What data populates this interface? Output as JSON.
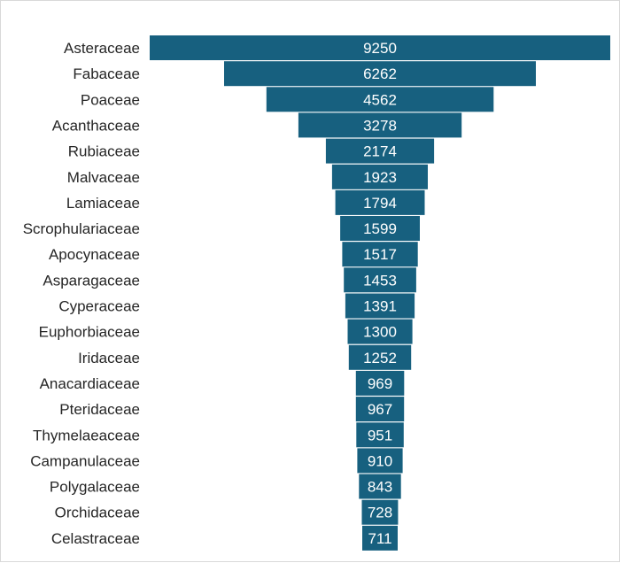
{
  "chart_data": {
    "type": "bar",
    "orientation": "horizontal-centered",
    "title": "",
    "xlabel": "",
    "ylabel": "",
    "bar_color": "#17607f",
    "label_color": "#262626",
    "value_label_color": "#ffffff",
    "grid": false,
    "legend": "none",
    "categories": [
      "Asteraceae",
      "Fabaceae",
      "Poaceae",
      "Acanthaceae",
      "Rubiaceae",
      "Malvaceae",
      "Lamiaceae",
      "Scrophulariaceae",
      "Apocynaceae",
      "Asparagaceae",
      "Cyperaceae",
      "Euphorbiaceae",
      "Iridaceae",
      "Anacardiaceae",
      "Pteridaceae",
      "Thymelaeaceae",
      "Campanulaceae",
      "Polygalaceae",
      "Orchidaceae",
      "Celastraceae"
    ],
    "values": [
      9250,
      6262,
      4562,
      3278,
      2174,
      1923,
      1794,
      1599,
      1517,
      1453,
      1391,
      1300,
      1252,
      969,
      967,
      951,
      910,
      843,
      728,
      711
    ]
  }
}
